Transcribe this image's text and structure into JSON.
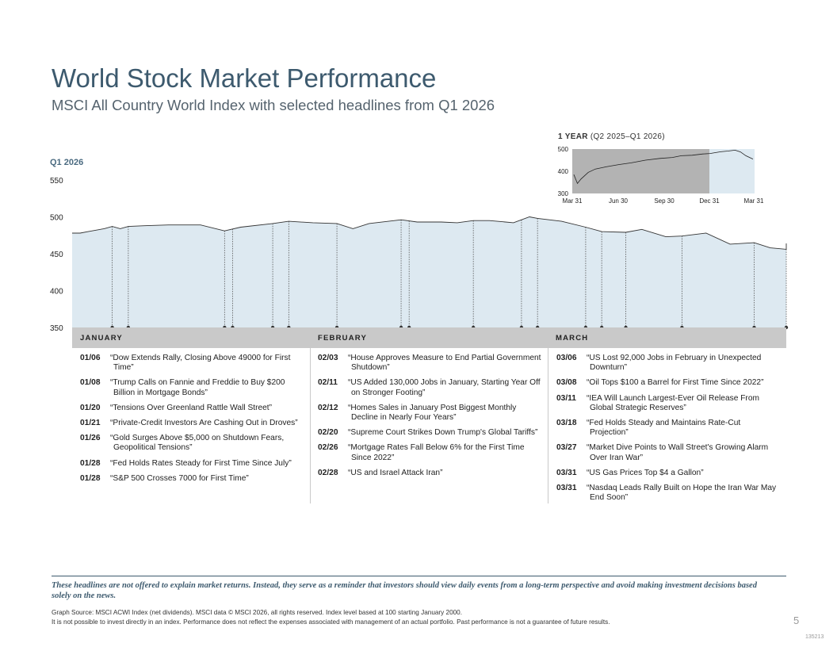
{
  "header": {
    "title": "World Stock Market Performance",
    "subtitle": "MSCI All Country World Index with selected headlines from Q1 2026"
  },
  "chart_data": [
    {
      "type": "area",
      "name": "Q1 2026",
      "title": "Q1 2026",
      "ylim": [
        350,
        550
      ],
      "yticks": [
        350,
        400,
        450,
        500,
        550
      ],
      "grid": false,
      "x_range": [
        "2026-01-01",
        "2026-03-31"
      ],
      "fill_color": "#dde9f1",
      "line_color": "#333333",
      "points": [
        [
          "2026-01-01",
          478
        ],
        [
          "2026-01-02",
          478
        ],
        [
          "2026-01-03",
          480
        ],
        [
          "2026-01-05",
          484
        ],
        [
          "2026-01-06",
          487
        ],
        [
          "2026-01-07",
          484
        ],
        [
          "2026-01-08",
          487
        ],
        [
          "2026-01-10",
          488
        ],
        [
          "2026-01-13",
          489
        ],
        [
          "2026-01-17",
          489
        ],
        [
          "2026-01-20",
          481
        ],
        [
          "2026-01-22",
          486
        ],
        [
          "2026-01-26",
          491
        ],
        [
          "2026-01-28",
          494
        ],
        [
          "2026-01-31",
          492
        ],
        [
          "2026-02-03",
          491
        ],
        [
          "2026-02-05",
          484
        ],
        [
          "2026-02-07",
          491
        ],
        [
          "2026-02-11",
          496
        ],
        [
          "2026-02-13",
          493
        ],
        [
          "2026-02-16",
          493
        ],
        [
          "2026-02-18",
          492
        ],
        [
          "2026-02-20",
          495
        ],
        [
          "2026-02-22",
          495
        ],
        [
          "2026-02-25",
          492
        ],
        [
          "2026-02-27",
          500
        ],
        [
          "2026-02-28",
          498
        ],
        [
          "2026-03-03",
          494
        ],
        [
          "2026-03-06",
          486
        ],
        [
          "2026-03-08",
          480
        ],
        [
          "2026-03-11",
          479
        ],
        [
          "2026-03-13",
          483
        ],
        [
          "2026-03-16",
          473
        ],
        [
          "2026-03-18",
          474
        ],
        [
          "2026-03-21",
          478
        ],
        [
          "2026-03-24",
          463
        ],
        [
          "2026-03-27",
          465
        ],
        [
          "2026-03-29",
          458
        ],
        [
          "2026-03-31",
          456
        ],
        [
          "2026-03-31",
          464
        ]
      ],
      "headline_dates": [
        "2026-01-06",
        "2026-01-08",
        "2026-01-20",
        "2026-01-21",
        "2026-01-26",
        "2026-01-28",
        "2026-02-03",
        "2026-02-11",
        "2026-02-12",
        "2026-02-20",
        "2026-02-26",
        "2026-02-28",
        "2026-03-06",
        "2026-03-08",
        "2026-03-11",
        "2026-03-18",
        "2026-03-27",
        "2026-03-31"
      ]
    },
    {
      "type": "line",
      "title_bold": "1 YEAR",
      "title_rest": "(Q2 2025–Q1 2026)",
      "ylim": [
        300,
        500
      ],
      "yticks": [
        300,
        400,
        500
      ],
      "xticks": [
        "Mar 31",
        "Jun 30",
        "Sep 30",
        "Dec 31",
        "Mar 31"
      ],
      "highlight_region": "last quarter",
      "shade_color": "#b3b3b3",
      "highlight_color": "#dde9f1",
      "points": [
        [
          0,
          385
        ],
        [
          0.02,
          345
        ],
        [
          0.04,
          365
        ],
        [
          0.08,
          395
        ],
        [
          0.12,
          410
        ],
        [
          0.18,
          420
        ],
        [
          0.25,
          430
        ],
        [
          0.32,
          438
        ],
        [
          0.4,
          450
        ],
        [
          0.48,
          458
        ],
        [
          0.55,
          462
        ],
        [
          0.6,
          470
        ],
        [
          0.66,
          472
        ],
        [
          0.72,
          478
        ],
        [
          0.76,
          480
        ],
        [
          0.79,
          484
        ],
        [
          0.82,
          488
        ],
        [
          0.86,
          491
        ],
        [
          0.9,
          495
        ],
        [
          0.93,
          487
        ],
        [
          0.96,
          470
        ],
        [
          1.0,
          455
        ]
      ]
    }
  ],
  "months": [
    {
      "label": "JANUARY",
      "entries": [
        {
          "date": "01/06",
          "text": "“Dow Extends Rally, Closing Above 49000 for First Time”"
        },
        {
          "date": "01/08",
          "text": "“Trump Calls on Fannie and Freddie to Buy $200 Billion in Mortgage Bonds”"
        },
        {
          "date": "01/20",
          "text": "“Tensions Over Greenland Rattle Wall Street”"
        },
        {
          "date": "01/21",
          "text": "“Private-Credit Investors Are Cashing Out in Droves”"
        },
        {
          "date": "01/26",
          "text": "“Gold Surges Above $5,000 on Shutdown Fears, Geopolitical Tensions”"
        },
        {
          "date": "01/28",
          "text": "“Fed Holds Rates Steady for First Time Since July”"
        },
        {
          "date": "01/28",
          "text": "“S&P 500 Crosses 7000 for First Time”"
        }
      ]
    },
    {
      "label": "FEBRUARY",
      "entries": [
        {
          "date": "02/03",
          "text": "“House Approves Measure to End Partial Government Shutdown”"
        },
        {
          "date": "02/11",
          "text": "“US Added 130,000 Jobs in January, Starting Year Off on Stronger Footing”"
        },
        {
          "date": "02/12",
          "text": "“Homes Sales in January Post Biggest Monthly Decline in Nearly Four Years”"
        },
        {
          "date": "02/20",
          "text": "“Supreme Court Strikes Down Trump's Global Tariffs”"
        },
        {
          "date": "02/26",
          "text": "“Mortgage Rates Fall Below 6% for the First Time Since 2022”"
        },
        {
          "date": "02/28",
          "text": "“US and Israel Attack Iran”"
        }
      ]
    },
    {
      "label": "MARCH",
      "entries": [
        {
          "date": "03/06",
          "text": "“US Lost 92,000 Jobs in February in Unexpected Downturn”"
        },
        {
          "date": "03/08",
          "text": "“Oil Tops $100 a Barrel for First Time Since 2022”"
        },
        {
          "date": "03/11",
          "text": "“IEA Will Launch Largest-Ever Oil Release From Global Strategic Reserves”"
        },
        {
          "date": "03/18",
          "text": "“Fed Holds Steady and Maintains Rate-Cut Projection”"
        },
        {
          "date": "03/27",
          "text": "“Market Dive Points to Wall Street's Growing Alarm Over Iran War”"
        },
        {
          "date": "03/31",
          "text": "“US Gas Prices Top $4 a Gallon”"
        },
        {
          "date": "03/31",
          "text": "“Nasdaq Leads Rally Built on Hope the Iran War May End Soon”"
        }
      ]
    }
  ],
  "footer": {
    "disclaimer": "These headlines are not offered to explain market returns. Instead, they serve as a reminder that investors should view daily events from a long-term perspective and avoid making investment decisions based solely on the news.",
    "source_line1": "Graph Source: MSCI ACWI Index (net dividends). MSCI data © MSCI 2026, all rights reserved. Index level based at 100 starting January 2000.",
    "source_line2": "It is not possible to invest directly in an index. Performance does not reflect the expenses associated with management of an actual portfolio. Past performance is not a guarantee of future results.",
    "page_number": "5",
    "code": "135213"
  }
}
